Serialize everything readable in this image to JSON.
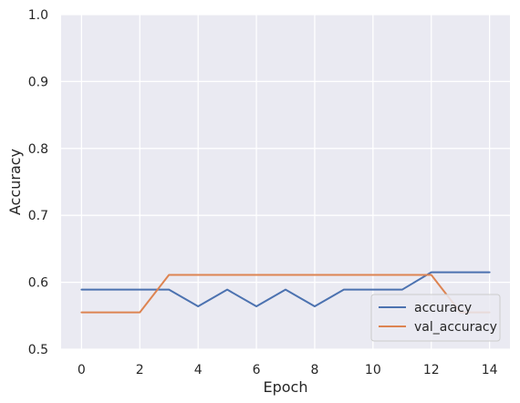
{
  "chart_data": {
    "type": "line",
    "title": "",
    "xlabel": "Epoch",
    "ylabel": "Accuracy",
    "xlim": [
      -0.7,
      14.7
    ],
    "ylim": [
      0.5,
      1.0
    ],
    "xticks": [
      0,
      2,
      4,
      6,
      8,
      10,
      12,
      14
    ],
    "xtick_labels": [
      "0",
      "2",
      "4",
      "6",
      "8",
      "10",
      "12",
      "14"
    ],
    "yticks": [
      0.5,
      0.6,
      0.7,
      0.8,
      0.9,
      1.0
    ],
    "ytick_labels": [
      "0.5",
      "0.6",
      "0.7",
      "0.8",
      "0.9",
      "1.0"
    ],
    "x": [
      0,
      1,
      2,
      3,
      4,
      5,
      6,
      7,
      8,
      9,
      10,
      11,
      12,
      13,
      14
    ],
    "series": [
      {
        "name": "accuracy",
        "color": "#4c72b0",
        "values": [
          0.589,
          0.589,
          0.589,
          0.589,
          0.564,
          0.589,
          0.564,
          0.589,
          0.564,
          0.589,
          0.589,
          0.589,
          0.615,
          0.615,
          0.615
        ]
      },
      {
        "name": "val_accuracy",
        "color": "#dd8452",
        "values": [
          0.555,
          0.555,
          0.555,
          0.611,
          0.611,
          0.611,
          0.611,
          0.611,
          0.611,
          0.611,
          0.611,
          0.611,
          0.611,
          0.555,
          0.555
        ]
      }
    ],
    "grid": true,
    "legend_position": "lower-right",
    "plot_background": "#eaeaf2",
    "grid_color": "#ffffff"
  }
}
